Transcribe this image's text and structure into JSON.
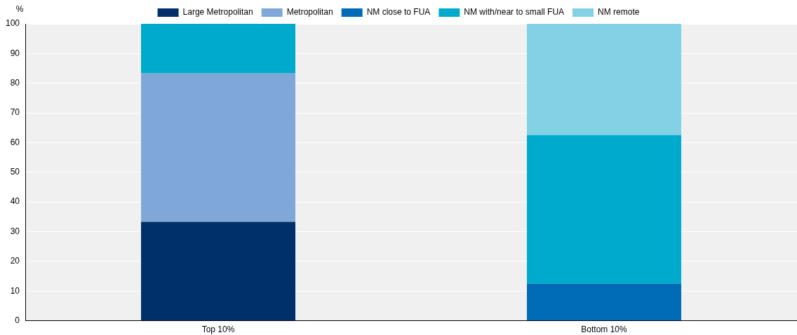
{
  "chart_data": {
    "type": "bar",
    "stacked": true,
    "ylabel": "%",
    "categories": [
      "Top 10%",
      "Bottom 10%"
    ],
    "series": [
      {
        "name": "Large Metropolitan",
        "color": "#003069",
        "values": [
          33.3,
          0
        ]
      },
      {
        "name": "Metropolitan",
        "color": "#7fa8d9",
        "values": [
          50,
          0
        ]
      },
      {
        "name": "NM close to FUA",
        "color": "#006bb6",
        "values": [
          0,
          12.5
        ]
      },
      {
        "name": "NM with/near to small FUA",
        "color": "#00aacc",
        "values": [
          16.7,
          50
        ]
      },
      {
        "name": "NM remote",
        "color": "#83d1e5",
        "values": [
          0,
          37.5
        ]
      }
    ],
    "ylim": [
      0,
      100
    ],
    "yticks": [
      0,
      10,
      20,
      30,
      40,
      50,
      60,
      70,
      80,
      90,
      100
    ],
    "grid": "y",
    "legend": "top"
  }
}
